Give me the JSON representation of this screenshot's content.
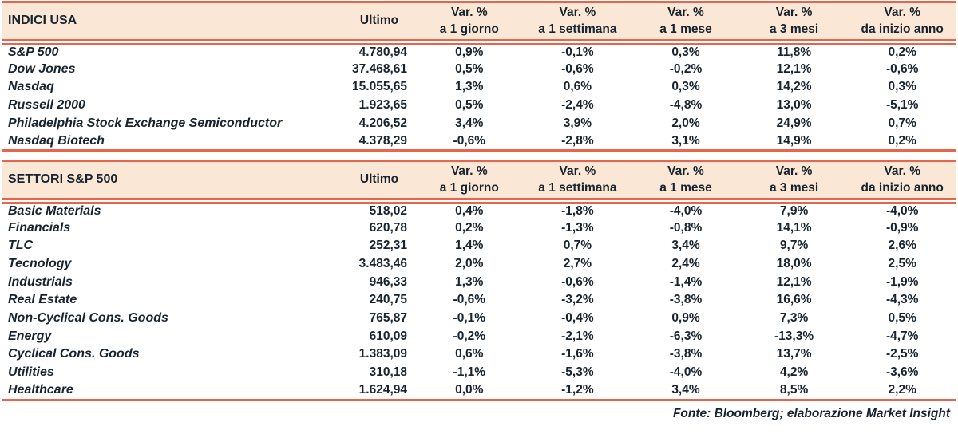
{
  "colors": {
    "header_bg": "#FBE7D6",
    "accent_line": "#E8644A",
    "text": "#17232F"
  },
  "labels": {
    "ultimo": "Ultimo",
    "var": "Var. %",
    "periods": [
      "a 1 giorno",
      "a 1 settimana",
      "a 1 mese",
      "a 3 mesi",
      "da inizio anno"
    ]
  },
  "tables": [
    {
      "title": "INDICI USA",
      "rows": [
        {
          "name": "S&P 500",
          "ultimo": "4.780,94",
          "vars": [
            "0,9%",
            "-0,1%",
            "0,3%",
            "11,8%",
            "0,2%"
          ]
        },
        {
          "name": "Dow Jones",
          "ultimo": "37.468,61",
          "vars": [
            "0,5%",
            "-0,6%",
            "-0,2%",
            "12,1%",
            "-0,6%"
          ]
        },
        {
          "name": "Nasdaq",
          "ultimo": "15.055,65",
          "vars": [
            "1,3%",
            "0,6%",
            "0,3%",
            "14,2%",
            "0,3%"
          ]
        },
        {
          "name": "Russell 2000",
          "ultimo": "1.923,65",
          "vars": [
            "0,5%",
            "-2,4%",
            "-4,8%",
            "13,0%",
            "-5,1%"
          ]
        },
        {
          "name": "Philadelphia Stock Exchange Semiconductor",
          "ultimo": "4.206,52",
          "vars": [
            "3,4%",
            "3,9%",
            "2,0%",
            "24,9%",
            "0,7%"
          ]
        },
        {
          "name": "Nasdaq Biotech",
          "ultimo": "4.378,29",
          "vars": [
            "-0,6%",
            "-2,8%",
            "3,1%",
            "14,9%",
            "0,2%"
          ]
        }
      ]
    },
    {
      "title": "SETTORI S&P 500",
      "rows": [
        {
          "name": "Basic Materials",
          "ultimo": "518,02",
          "vars": [
            "0,4%",
            "-1,8%",
            "-4,0%",
            "7,9%",
            "-4,0%"
          ]
        },
        {
          "name": "Financials",
          "ultimo": "620,78",
          "vars": [
            "0,2%",
            "-1,3%",
            "-0,8%",
            "14,1%",
            "-0,9%"
          ]
        },
        {
          "name": "TLC",
          "ultimo": "252,31",
          "vars": [
            "1,4%",
            "0,7%",
            "3,4%",
            "9,7%",
            "2,6%"
          ]
        },
        {
          "name": "Tecnology",
          "ultimo": "3.483,46",
          "vars": [
            "2,0%",
            "2,7%",
            "2,4%",
            "18,0%",
            "2,5%"
          ]
        },
        {
          "name": "Industrials",
          "ultimo": "946,33",
          "vars": [
            "1,3%",
            "-0,6%",
            "-1,4%",
            "12,1%",
            "-1,9%"
          ]
        },
        {
          "name": "Real Estate",
          "ultimo": "240,75",
          "vars": [
            "-0,6%",
            "-3,2%",
            "-3,8%",
            "16,6%",
            "-4,3%"
          ]
        },
        {
          "name": "Non-Cyclical Cons. Goods",
          "ultimo": "765,87",
          "vars": [
            "-0,1%",
            "-0,4%",
            "0,9%",
            "7,3%",
            "0,5%"
          ]
        },
        {
          "name": "Energy",
          "ultimo": "610,09",
          "vars": [
            "-0,2%",
            "-2,1%",
            "-6,3%",
            "-13,3%",
            "-4,7%"
          ]
        },
        {
          "name": "Cyclical Cons. Goods",
          "ultimo": "1.383,09",
          "vars": [
            "0,6%",
            "-1,6%",
            "-3,8%",
            "13,7%",
            "-2,5%"
          ]
        },
        {
          "name": "Utilities",
          "ultimo": "310,18",
          "vars": [
            "-1,1%",
            "-5,3%",
            "-4,0%",
            "4,2%",
            "-3,6%"
          ]
        },
        {
          "name": "Healthcare",
          "ultimo": "1.624,94",
          "vars": [
            "0,0%",
            "-1,2%",
            "3,4%",
            "8,5%",
            "2,2%"
          ]
        }
      ]
    }
  ],
  "footer": "Fonte: Bloomberg; elaborazione Market Insight"
}
